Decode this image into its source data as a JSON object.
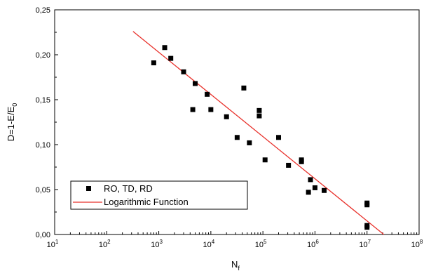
{
  "chart_data": {
    "type": "scatter",
    "xscale": "log",
    "xlim": [
      10.0,
      100000000.0
    ],
    "ylim": [
      0,
      0.25
    ],
    "grid": false,
    "legend_placement": "bottom-left",
    "x_ticks": [
      10,
      100,
      1000,
      10000,
      100000,
      1000000,
      10000000,
      100000000
    ],
    "x_tick_base": "10",
    "x_tick_exponents": [
      "1",
      "2",
      "3",
      "4",
      "5",
      "6",
      "7",
      "8"
    ],
    "y_ticks": [
      0,
      0.05,
      0.1,
      0.15,
      0.2,
      0.25
    ],
    "y_tick_labels": [
      "0,00",
      "0,05",
      "0,10",
      "0,15",
      "0,20",
      "0,25"
    ],
    "xlabel_main": "N",
    "xlabel_sub": "f",
    "ylabel_main": "D=1-E/E",
    "ylabel_sub": "0",
    "series": [
      {
        "name": "RO, TD, RD",
        "kind": "points",
        "color": "#000000",
        "points": [
          [
            800,
            0.191
          ],
          [
            1300,
            0.208
          ],
          [
            1700,
            0.196
          ],
          [
            3000,
            0.181
          ],
          [
            4500,
            0.139
          ],
          [
            5000,
            0.168
          ],
          [
            8500,
            0.156
          ],
          [
            10000,
            0.139
          ],
          [
            20000,
            0.131
          ],
          [
            32000,
            0.108
          ],
          [
            43000,
            0.163
          ],
          [
            55000,
            0.102
          ],
          [
            85000,
            0.138
          ],
          [
            85000,
            0.132
          ],
          [
            110000,
            0.083
          ],
          [
            200000,
            0.108
          ],
          [
            310000,
            0.077
          ],
          [
            550000,
            0.081
          ],
          [
            550000,
            0.083
          ],
          [
            750000,
            0.047
          ],
          [
            820000,
            0.061
          ],
          [
            1000000,
            0.052
          ],
          [
            1500000,
            0.049
          ],
          [
            10000000,
            0.035
          ],
          [
            10000000,
            0.033
          ],
          [
            10000000,
            0.01
          ],
          [
            10000000,
            0.008
          ]
        ]
      },
      {
        "name": "Logarithmic Function",
        "kind": "line",
        "color": "#e8302a",
        "points": [
          [
            320,
            0.226
          ],
          [
            21000000,
            0.0
          ]
        ]
      }
    ]
  }
}
